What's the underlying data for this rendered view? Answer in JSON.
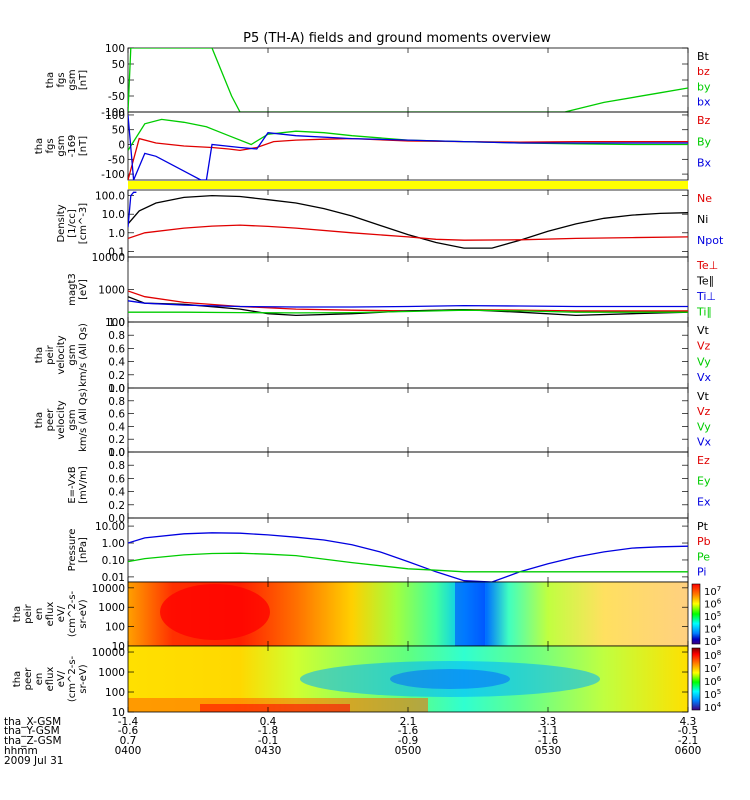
{
  "title": "P5 (TH-A) fields and ground moments overview",
  "colors": {
    "red": "#e00000",
    "green": "#00cc00",
    "blue": "#0000e0",
    "black": "#000000",
    "yellow": "#ffff00",
    "grid": "#000000"
  },
  "chart_data": [
    {
      "id": "fgs",
      "type": "line",
      "ylabel": [
        "tha",
        "fgs",
        "gsm",
        "[nT]"
      ],
      "yticks": [
        "100",
        "50",
        "0",
        "-50",
        "-100"
      ],
      "ylim": [
        -100,
        100
      ],
      "legend": [
        {
          "label": "Bt",
          "color": "#000000"
        },
        {
          "label": "bz",
          "color": "#e00000"
        },
        {
          "label": "by",
          "color": "#00cc00"
        },
        {
          "label": "bx",
          "color": "#0000e0"
        }
      ],
      "series": [
        {
          "name": "by",
          "color": "#00cc00",
          "x": [
            0,
            0.005,
            0.02,
            0.06,
            0.1,
            0.15,
            0.185,
            0.2,
            0.45,
            0.72,
            0.78,
            0.85,
            0.95,
            1.0
          ],
          "y": [
            -100,
            100,
            100,
            100,
            100,
            100,
            -50,
            -100,
            -100,
            -100,
            -100,
            -70,
            -40,
            -25
          ]
        }
      ]
    },
    {
      "id": "fgs_raw",
      "type": "line",
      "ylabel": [
        "tha",
        "fgs",
        "gsm",
        "-169",
        "[nT]"
      ],
      "yticks": [
        "100",
        "50",
        "0",
        "-50",
        "-100"
      ],
      "ylim": [
        -120,
        110
      ],
      "legend": [
        {
          "label": "Bz",
          "color": "#e00000"
        },
        {
          "label": "By",
          "color": "#00cc00"
        },
        {
          "label": "Bx",
          "color": "#0000e0"
        }
      ],
      "series": [
        {
          "name": "Bz",
          "color": "#e00000",
          "x": [
            0,
            0.02,
            0.05,
            0.1,
            0.15,
            0.18,
            0.2,
            0.23,
            0.26,
            0.3,
            0.35,
            0.4,
            0.5,
            0.6,
            0.7,
            0.8,
            0.9,
            1.0
          ],
          "y": [
            -120,
            20,
            5,
            -5,
            -10,
            -15,
            -20,
            -10,
            10,
            15,
            18,
            20,
            12,
            10,
            8,
            10,
            10,
            10
          ]
        },
        {
          "name": "By",
          "color": "#00cc00",
          "x": [
            0,
            0.03,
            0.06,
            0.1,
            0.14,
            0.18,
            0.22,
            0.25,
            0.3,
            0.35,
            0.4,
            0.5,
            0.6,
            0.7,
            0.8,
            0.9,
            1.0
          ],
          "y": [
            -20,
            70,
            85,
            75,
            60,
            30,
            0,
            35,
            45,
            40,
            30,
            15,
            10,
            5,
            2,
            0,
            0
          ]
        },
        {
          "name": "Bx",
          "color": "#0000e0",
          "x": [
            0,
            0.01,
            0.03,
            0.05,
            0.08,
            0.11,
            0.13,
            0.14,
            0.15,
            0.2,
            0.23,
            0.25,
            0.3,
            0.4,
            0.5,
            0.6,
            0.7,
            0.8,
            0.9,
            1.0
          ],
          "y": [
            100,
            -120,
            -30,
            -40,
            -70,
            -100,
            -120,
            -120,
            0,
            -10,
            -15,
            40,
            30,
            20,
            15,
            10,
            5,
            5,
            5,
            5
          ]
        }
      ]
    },
    {
      "id": "yellow_bar",
      "type": "bar",
      "color": "#ffff00"
    },
    {
      "id": "density",
      "type": "line",
      "log": true,
      "ylabel": [
        "Density",
        "[1/cc]",
        "[cm^-3]"
      ],
      "yticks": [
        "100.0",
        "10.0",
        "1.0",
        "0.1"
      ],
      "ylim": [
        0.05,
        200
      ],
      "legend": [
        {
          "label": "Ne",
          "color": "#e00000"
        },
        {
          "label": "Ni",
          "color": "#000000"
        },
        {
          "label": "Npot",
          "color": "#0000e0"
        }
      ],
      "series": [
        {
          "name": "Ni",
          "color": "#000000",
          "x": [
            0,
            0.02,
            0.05,
            0.1,
            0.15,
            0.2,
            0.25,
            0.3,
            0.35,
            0.4,
            0.45,
            0.5,
            0.55,
            0.6,
            0.65,
            0.7,
            0.75,
            0.8,
            0.85,
            0.9,
            0.95,
            1.0
          ],
          "y": [
            3,
            15,
            40,
            80,
            100,
            90,
            60,
            40,
            20,
            8,
            2.5,
            0.8,
            0.3,
            0.15,
            0.15,
            0.4,
            1.2,
            3,
            6,
            9,
            11,
            12
          ]
        },
        {
          "name": "Ne",
          "color": "#e00000",
          "x": [
            0,
            0.03,
            0.1,
            0.15,
            0.2,
            0.25,
            0.3,
            0.4,
            0.5,
            0.55,
            0.6,
            0.7,
            0.8,
            0.9,
            1.0
          ],
          "y": [
            0.5,
            1.0,
            1.8,
            2.3,
            2.6,
            2.2,
            1.8,
            1.0,
            0.6,
            0.45,
            0.4,
            0.42,
            0.5,
            0.55,
            0.6
          ]
        },
        {
          "name": "Npot",
          "color": "#0000e0",
          "x": [
            0,
            0.005,
            0.01,
            0.015
          ],
          "y": [
            2,
            100,
            150,
            150
          ]
        }
      ]
    },
    {
      "id": "temperature",
      "type": "line",
      "log": true,
      "ylabel": [
        "magt3",
        "[eV]"
      ],
      "yticks": [
        "10000",
        "1000",
        "100"
      ],
      "ylim": [
        100,
        10000
      ],
      "legend": [
        {
          "label": "Te⊥",
          "color": "#e00000"
        },
        {
          "label": "Te∥",
          "color": "#000000"
        },
        {
          "label": "Ti⊥",
          "color": "#0000e0"
        },
        {
          "label": "Ti∥",
          "color": "#00cc00"
        }
      ],
      "series": [
        {
          "name": "Te⊥",
          "color": "#e00000",
          "x": [
            0,
            0.03,
            0.1,
            0.2,
            0.3,
            0.4,
            0.5,
            0.6,
            0.7,
            0.8,
            0.9,
            1.0
          ],
          "y": [
            900,
            600,
            400,
            300,
            250,
            230,
            220,
            240,
            230,
            220,
            220,
            220
          ]
        },
        {
          "name": "Te∥",
          "color": "#000000",
          "x": [
            0,
            0.03,
            0.1,
            0.2,
            0.25,
            0.3,
            0.4,
            0.5,
            0.6,
            0.7,
            0.8,
            0.9,
            1.0
          ],
          "y": [
            600,
            380,
            350,
            250,
            180,
            160,
            180,
            220,
            240,
            200,
            160,
            180,
            200
          ]
        },
        {
          "name": "Ti⊥",
          "color": "#0000e0",
          "x": [
            0,
            0.03,
            0.1,
            0.2,
            0.3,
            0.4,
            0.5,
            0.6,
            0.7,
            0.8,
            0.9,
            1.0
          ],
          "y": [
            450,
            380,
            330,
            300,
            290,
            290,
            300,
            320,
            310,
            300,
            300,
            300
          ]
        },
        {
          "name": "Ti∥",
          "color": "#00cc00",
          "x": [
            0,
            0.1,
            0.2,
            0.3,
            0.4,
            0.5,
            0.6,
            0.7,
            0.8,
            0.9,
            1.0
          ],
          "y": [
            200,
            200,
            195,
            190,
            195,
            210,
            230,
            220,
            200,
            200,
            200
          ]
        }
      ]
    },
    {
      "id": "peir_vel",
      "type": "line",
      "ylabel": [
        "tha",
        "peir",
        "velocity",
        "gsm",
        "km/s (All Qs)"
      ],
      "yticks": [
        "1.0",
        "0.8",
        "0.6",
        "0.4",
        "0.2",
        "0.0"
      ],
      "ylim": [
        0,
        1
      ],
      "legend": [
        {
          "label": "Vt",
          "color": "#000000"
        },
        {
          "label": "Vz",
          "color": "#e00000"
        },
        {
          "label": "Vy",
          "color": "#00cc00"
        },
        {
          "label": "Vx",
          "color": "#0000e0"
        }
      ],
      "series": []
    },
    {
      "id": "peer_vel",
      "type": "line",
      "ylabel": [
        "tha",
        "peer",
        "velocity",
        "gsm",
        "km/s (All Qs)"
      ],
      "yticks": [
        "1.0",
        "0.8",
        "0.6",
        "0.4",
        "0.2",
        "0.0"
      ],
      "ylim": [
        0,
        1
      ],
      "legend": [
        {
          "label": "Vt",
          "color": "#000000"
        },
        {
          "label": "Vz",
          "color": "#e00000"
        },
        {
          "label": "Vy",
          "color": "#00cc00"
        },
        {
          "label": "Vx",
          "color": "#0000e0"
        }
      ],
      "series": []
    },
    {
      "id": "efield",
      "type": "line",
      "ylabel": [
        "E=-VxB",
        "[mV/m]"
      ],
      "yticks": [
        "1.0",
        "0.8",
        "0.6",
        "0.4",
        "0.2",
        "0.0"
      ],
      "ylim": [
        0,
        1
      ],
      "legend": [
        {
          "label": "Ez",
          "color": "#e00000"
        },
        {
          "label": "Ey",
          "color": "#00cc00"
        },
        {
          "label": "Ex",
          "color": "#0000e0"
        }
      ],
      "series": []
    },
    {
      "id": "pressure",
      "type": "line",
      "log": true,
      "ylabel": [
        "Pressure",
        "[nPa]"
      ],
      "yticks": [
        "10.00",
        "1.00",
        "0.10",
        "0.01"
      ],
      "ylim": [
        0.005,
        30
      ],
      "legend": [
        {
          "label": "Pt",
          "color": "#000000"
        },
        {
          "label": "Pb",
          "color": "#e00000"
        },
        {
          "label": "Pe",
          "color": "#00cc00"
        },
        {
          "label": "Pi",
          "color": "#0000e0"
        }
      ],
      "series": [
        {
          "name": "Pi",
          "color": "#0000e0",
          "x": [
            0,
            0.03,
            0.1,
            0.15,
            0.2,
            0.25,
            0.3,
            0.35,
            0.4,
            0.45,
            0.5,
            0.55,
            0.6,
            0.65,
            0.7,
            0.75,
            0.8,
            0.85,
            0.9,
            0.95,
            1.0
          ],
          "y": [
            1.0,
            2.0,
            3.5,
            4.0,
            3.8,
            3.0,
            2.2,
            1.5,
            0.8,
            0.3,
            0.08,
            0.02,
            0.006,
            0.005,
            0.02,
            0.06,
            0.15,
            0.3,
            0.5,
            0.6,
            0.65
          ]
        },
        {
          "name": "Pe",
          "color": "#00cc00",
          "x": [
            0,
            0.03,
            0.1,
            0.15,
            0.2,
            0.25,
            0.3,
            0.4,
            0.5,
            0.55,
            0.6,
            0.7,
            0.8,
            0.9,
            1.0
          ],
          "y": [
            0.08,
            0.12,
            0.2,
            0.24,
            0.25,
            0.22,
            0.18,
            0.07,
            0.03,
            0.025,
            0.02,
            0.02,
            0.02,
            0.02,
            0.02
          ]
        }
      ]
    },
    {
      "id": "peir_spec",
      "type": "heatmap",
      "ylabel": [
        "tha",
        "peir",
        "en",
        "eflux",
        "eV/",
        "(cm^2-s-",
        "sr-eV)"
      ],
      "yticks": [
        "10000",
        "1000",
        "100",
        "10"
      ],
      "ylim": [
        10,
        20000
      ],
      "colorbar": [
        "10^7",
        "10^6",
        "10^5",
        "10^4",
        "10^3"
      ],
      "colorbar_range": [
        3,
        7.4
      ]
    },
    {
      "id": "peer_spec",
      "type": "heatmap",
      "ylabel": [
        "tha",
        "peer",
        "en",
        "eflux",
        "eV/",
        "(cm^2-s-",
        "sr-eV)"
      ],
      "yticks": [
        "10000",
        "1000",
        "100",
        "10"
      ],
      "ylim": [
        10,
        20000
      ],
      "colorbar": [
        "10^8",
        "10^7",
        "10^6",
        "10^5",
        "10^4"
      ],
      "colorbar_range": [
        3.5,
        8.2
      ]
    }
  ],
  "xaxis": {
    "row_labels": [
      "tha_X-GSM",
      "tha_Y-GSM",
      "tha_Z-GSM",
      "hhmm",
      "2009 Jul 31"
    ],
    "ticks": [
      {
        "values": [
          "-1.4",
          "-0.6",
          "0.7",
          "0400"
        ]
      },
      {
        "values": [
          "0.4",
          "-1.8",
          "-0.1",
          "0430"
        ]
      },
      {
        "values": [
          "2.1",
          "-1.6",
          "-0.9",
          "0500"
        ]
      },
      {
        "values": [
          "3.3",
          "-1.1",
          "-1.6",
          "0530"
        ]
      },
      {
        "values": [
          "4.3",
          "-0.5",
          "-2.1",
          "0600"
        ]
      }
    ]
  }
}
